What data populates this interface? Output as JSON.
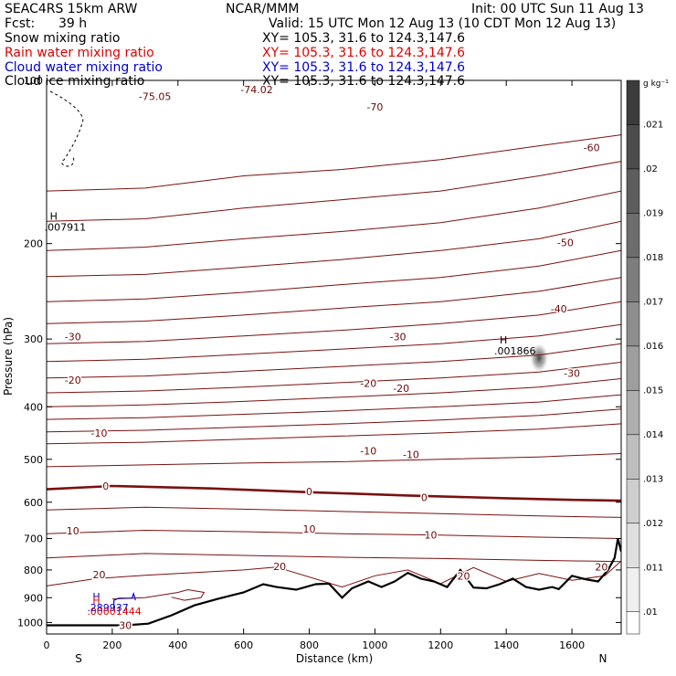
{
  "header": {
    "model": "SEAC4RS 15km ARW",
    "org": "NCAR/MMM",
    "init": "Init: 00 UTC Sun 11 Aug 13",
    "fcst_label": "Fcst:",
    "fcst_value": "39 h",
    "valid": "Valid: 15 UTC Mon 12 Aug 13 (10 CDT Mon 12 Aug 13)",
    "fields": [
      {
        "name": "Snow mixing ratio",
        "color": "#000000"
      },
      {
        "name": "Rain water mixing ratio",
        "color": "#e00000"
      },
      {
        "name": "Cloud water mixing ratio",
        "color": "#0000d0"
      },
      {
        "name": "Cloud ice mixing ratio",
        "color": "#000000"
      }
    ],
    "xy": [
      {
        "text": "XY= 105.3, 31.6 to 124.3,147.6",
        "color": "#000000"
      },
      {
        "text": "XY= 105.3, 31.6 to 124.3,147.6",
        "color": "#e00000"
      },
      {
        "text": "XY= 105.3, 31.6 to 124.3,147.6",
        "color": "#0000d0"
      },
      {
        "text": "XY= 105.3, 31.6 to 124.3,147.6",
        "color": "#000000"
      }
    ]
  },
  "chart_data": {
    "type": "contour",
    "xlabel": "Distance (km)",
    "ylabel": "Pressure (hPa)",
    "xlim": [
      0,
      1750
    ],
    "ylim": [
      1050,
      100
    ],
    "y_scale": "log",
    "xticks": [
      0,
      200,
      400,
      600,
      800,
      1000,
      1200,
      1400,
      1600
    ],
    "yticks": [
      100,
      200,
      300,
      400,
      500,
      600,
      700,
      800,
      900,
      1000
    ],
    "x_end_labels": {
      "left": "S",
      "right": "N"
    },
    "isotherms": [
      {
        "value": -80,
        "points": [
          [
            0,
            160
          ],
          [
            300,
            158
          ],
          [
            600,
            150
          ],
          [
            900,
            146
          ],
          [
            1200,
            140
          ],
          [
            1500,
            132
          ],
          [
            1750,
            126
          ]
        ]
      },
      {
        "value": -75,
        "labels": [
          {
            "text": "-75.05",
            "x": 330,
            "p": 107
          }
        ]
      },
      {
        "value": -74,
        "labels": [
          {
            "text": "-74.02",
            "x": 640,
            "p": 104
          }
        ]
      },
      {
        "value": -70,
        "points": [
          [
            0,
            182
          ],
          [
            300,
            180
          ],
          [
            600,
            172
          ],
          [
            900,
            166
          ],
          [
            1200,
            160
          ],
          [
            1500,
            150
          ],
          [
            1750,
            141
          ]
        ],
        "labels": [
          {
            "text": "-70",
            "x": 1000,
            "p": 112
          }
        ]
      },
      {
        "value": -65,
        "points": [
          [
            0,
            206
          ],
          [
            300,
            203
          ],
          [
            600,
            196
          ],
          [
            900,
            190
          ],
          [
            1200,
            183
          ],
          [
            1500,
            172
          ],
          [
            1750,
            160
          ]
        ]
      },
      {
        "value": -60,
        "points": [
          [
            0,
            230
          ],
          [
            300,
            228
          ],
          [
            600,
            221
          ],
          [
            900,
            214
          ],
          [
            1200,
            206
          ],
          [
            1500,
            196
          ],
          [
            1750,
            182
          ]
        ],
        "labels": [
          {
            "text": "-60",
            "x": 1660,
            "p": 133
          }
        ]
      },
      {
        "value": -55,
        "points": [
          [
            0,
            256
          ],
          [
            300,
            253
          ],
          [
            600,
            246
          ],
          [
            900,
            238
          ],
          [
            1200,
            231
          ],
          [
            1500,
            220
          ],
          [
            1750,
            206
          ]
        ]
      },
      {
        "value": -50,
        "points": [
          [
            0,
            281
          ],
          [
            300,
            278
          ],
          [
            600,
            271
          ],
          [
            900,
            263
          ],
          [
            1200,
            256
          ],
          [
            1500,
            245
          ],
          [
            1750,
            231
          ]
        ],
        "labels": [
          {
            "text": "-50",
            "x": 1580,
            "p": 199
          }
        ]
      },
      {
        "value": -45,
        "points": [
          [
            0,
            306
          ],
          [
            300,
            303
          ],
          [
            600,
            296
          ],
          [
            900,
            289
          ],
          [
            1200,
            281
          ],
          [
            1500,
            271
          ],
          [
            1750,
            256
          ]
        ]
      },
      {
        "value": -40,
        "points": [
          [
            0,
            330
          ],
          [
            300,
            327
          ],
          [
            600,
            320
          ],
          [
            900,
            313
          ],
          [
            1200,
            306
          ],
          [
            1500,
            296
          ],
          [
            1750,
            282
          ]
        ],
        "labels": [
          {
            "text": "-40",
            "x": 1560,
            "p": 264
          }
        ]
      },
      {
        "value": -35,
        "points": [
          [
            0,
            354
          ],
          [
            300,
            351
          ],
          [
            600,
            344
          ],
          [
            900,
            337
          ],
          [
            1200,
            330
          ],
          [
            1500,
            321
          ],
          [
            1750,
            306
          ]
        ]
      },
      {
        "value": -30,
        "points": [
          [
            0,
            377
          ],
          [
            300,
            374
          ],
          [
            600,
            368
          ],
          [
            900,
            361
          ],
          [
            1200,
            354
          ],
          [
            1500,
            345
          ],
          [
            1750,
            331
          ]
        ],
        "labels": [
          {
            "text": "-30",
            "x": 80,
            "p": 297
          },
          {
            "text": "-30",
            "x": 1070,
            "p": 297
          },
          {
            "text": "-30",
            "x": 1600,
            "p": 347
          }
        ]
      },
      {
        "value": -25,
        "points": [
          [
            0,
            400
          ],
          [
            300,
            397
          ],
          [
            600,
            391
          ],
          [
            900,
            384
          ],
          [
            1200,
            377
          ],
          [
            1500,
            368
          ],
          [
            1750,
            355
          ]
        ]
      },
      {
        "value": -20,
        "points": [
          [
            0,
            422
          ],
          [
            300,
            419
          ],
          [
            600,
            413
          ],
          [
            900,
            407
          ],
          [
            1200,
            400
          ],
          [
            1500,
            392
          ],
          [
            1750,
            380
          ]
        ],
        "labels": [
          {
            "text": "-20",
            "x": 80,
            "p": 357
          },
          {
            "text": "-20",
            "x": 980,
            "p": 362
          },
          {
            "text": "-20",
            "x": 1080,
            "p": 370
          }
        ]
      },
      {
        "value": -15,
        "points": [
          [
            0,
            445
          ],
          [
            300,
            442
          ],
          [
            600,
            436
          ],
          [
            900,
            430
          ],
          [
            1200,
            423
          ],
          [
            1500,
            415
          ],
          [
            1750,
            404
          ]
        ]
      },
      {
        "value": -10,
        "points": [
          [
            0,
            468
          ],
          [
            300,
            465
          ],
          [
            600,
            459
          ],
          [
            900,
            453
          ],
          [
            1200,
            447
          ],
          [
            1500,
            440
          ],
          [
            1750,
            430
          ]
        ],
        "labels": [
          {
            "text": "-10",
            "x": 160,
            "p": 447
          },
          {
            "text": "-10",
            "x": 980,
            "p": 482
          },
          {
            "text": "-10",
            "x": 1110,
            "p": 490
          }
        ]
      },
      {
        "value": -5,
        "points": [
          [
            0,
            516
          ],
          [
            300,
            512
          ],
          [
            600,
            508
          ],
          [
            900,
            505
          ],
          [
            1200,
            500
          ],
          [
            1500,
            495
          ],
          [
            1750,
            488
          ]
        ]
      },
      {
        "value": 0,
        "bold": true,
        "points": [
          [
            0,
            568
          ],
          [
            200,
            560
          ],
          [
            500,
            566
          ],
          [
            800,
            575
          ],
          [
            1100,
            583
          ],
          [
            1400,
            590
          ],
          [
            1600,
            594
          ],
          [
            1750,
            596
          ]
        ],
        "labels": [
          {
            "text": "0",
            "x": 180,
            "p": 560
          },
          {
            "text": "0",
            "x": 800,
            "p": 573
          },
          {
            "text": "0",
            "x": 1150,
            "p": 588
          }
        ]
      },
      {
        "value": 5,
        "points": [
          [
            0,
            620
          ],
          [
            300,
            613
          ],
          [
            600,
            618
          ],
          [
            900,
            624
          ],
          [
            1200,
            630
          ],
          [
            1500,
            636
          ],
          [
            1750,
            640
          ]
        ]
      },
      {
        "value": 10,
        "points": [
          [
            0,
            686
          ],
          [
            300,
            676
          ],
          [
            600,
            680
          ],
          [
            900,
            686
          ],
          [
            1200,
            690
          ],
          [
            1500,
            696
          ],
          [
            1750,
            700
          ]
        ],
        "labels": [
          {
            "text": "10",
            "x": 80,
            "p": 677
          },
          {
            "text": "10",
            "x": 800,
            "p": 672
          },
          {
            "text": "10",
            "x": 1170,
            "p": 689
          }
        ]
      },
      {
        "value": 15,
        "points": [
          [
            0,
            760
          ],
          [
            300,
            746
          ],
          [
            600,
            752
          ],
          [
            900,
            758
          ],
          [
            1200,
            762
          ],
          [
            1500,
            768
          ],
          [
            1750,
            772
          ]
        ]
      },
      {
        "value": 20,
        "points": [
          [
            0,
            856
          ],
          [
            150,
            830
          ],
          [
            300,
            818
          ],
          [
            600,
            800
          ],
          [
            700,
            790
          ],
          [
            900,
            860
          ],
          [
            1000,
            820
          ],
          [
            1100,
            800
          ],
          [
            1200,
            848
          ],
          [
            1300,
            792
          ],
          [
            1400,
            840
          ],
          [
            1500,
            812
          ],
          [
            1600,
            836
          ],
          [
            1700,
            820
          ],
          [
            1750,
            770
          ]
        ],
        "labels": [
          {
            "text": "20",
            "x": 160,
            "p": 816
          },
          {
            "text": "20",
            "x": 710,
            "p": 788
          },
          {
            "text": "20",
            "x": 1270,
            "p": 820
          },
          {
            "text": "20",
            "x": 1690,
            "p": 790
          }
        ]
      },
      {
        "value": 25,
        "points": [
          [
            200,
            905
          ],
          [
            300,
            900
          ],
          [
            400,
            880
          ],
          [
            430,
            870
          ],
          [
            480,
            880
          ],
          [
            470,
            900
          ],
          [
            420,
            910
          ],
          [
            380,
            898
          ]
        ]
      },
      {
        "value": 30,
        "labels": [
          {
            "text": "30",
            "x": 240,
            "p": 1012
          }
        ]
      }
    ],
    "terrain": [
      [
        0,
        1012
      ],
      [
        240,
        1012
      ],
      [
        310,
        1005
      ],
      [
        380,
        970
      ],
      [
        450,
        930
      ],
      [
        520,
        905
      ],
      [
        600,
        880
      ],
      [
        660,
        850
      ],
      [
        700,
        860
      ],
      [
        760,
        870
      ],
      [
        820,
        850
      ],
      [
        860,
        848
      ],
      [
        900,
        900
      ],
      [
        930,
        865
      ],
      [
        980,
        840
      ],
      [
        1020,
        860
      ],
      [
        1060,
        840
      ],
      [
        1100,
        810
      ],
      [
        1140,
        830
      ],
      [
        1180,
        840
      ],
      [
        1220,
        860
      ],
      [
        1260,
        800
      ],
      [
        1300,
        862
      ],
      [
        1340,
        865
      ],
      [
        1380,
        850
      ],
      [
        1420,
        830
      ],
      [
        1460,
        860
      ],
      [
        1500,
        870
      ],
      [
        1540,
        860
      ],
      [
        1560,
        868
      ],
      [
        1600,
        820
      ],
      [
        1640,
        832
      ],
      [
        1680,
        840
      ],
      [
        1710,
        800
      ],
      [
        1730,
        760
      ],
      [
        1740,
        700
      ],
      [
        1750,
        740
      ]
    ],
    "extrema": [
      {
        "mark": "H",
        "value": ".007911",
        "x": 10,
        "p": 188,
        "color": "#000000"
      },
      {
        "mark": "H",
        "value": ".001866",
        "x": 1380,
        "p": 318,
        "color": "#000000"
      },
      {
        "mark": "H",
        "value": ".289937",
        "x": 140,
        "p": 946,
        "color": "#0000d0"
      },
      {
        "mark": "H",
        "value": ".00001444",
        "x": 140,
        "p": 960,
        "color": "#e00000"
      }
    ],
    "cloud_water_contour": [
      [
        205,
        950
      ],
      [
        205,
        910
      ],
      [
        220,
        902
      ],
      [
        260,
        902
      ],
      [
        265,
        885
      ],
      [
        270,
        905
      ],
      [
        270,
        910
      ]
    ],
    "snow_blob": {
      "x": 1500,
      "p": 325
    },
    "colorbar": {
      "unit": "g kg⁻¹",
      "levels": [
        ".021",
        ".02",
        ".019",
        ".018",
        ".017",
        ".016",
        ".015",
        ".014",
        ".013",
        ".012",
        ".011",
        ".01"
      ]
    }
  }
}
